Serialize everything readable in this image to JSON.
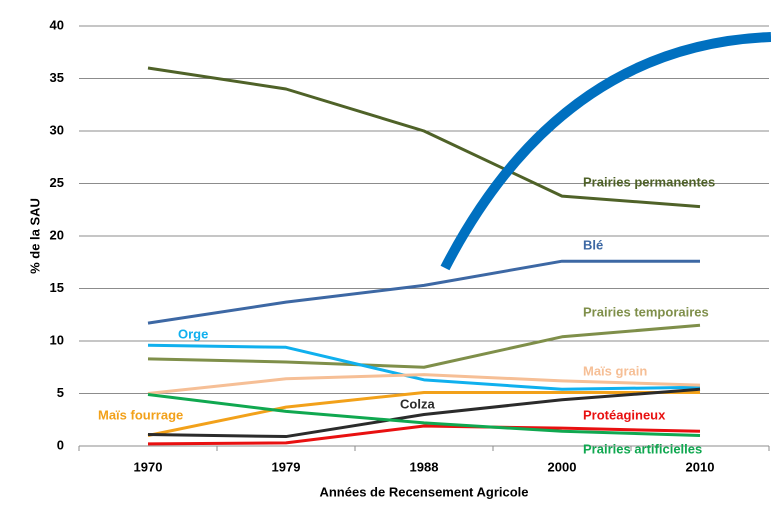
{
  "chart_data": {
    "type": "line",
    "y_label": "% de la SAU",
    "x_label": "Années de Recensement Agricole",
    "categories": [
      "1970",
      "1979",
      "1988",
      "2000",
      "2010"
    ],
    "ylim": [
      0,
      40
    ],
    "yticks": [
      0,
      5,
      10,
      15,
      20,
      25,
      30,
      35,
      40
    ],
    "grid": true,
    "series": [
      {
        "name": "Prairies permanentes",
        "color": "#4f6228",
        "values": [
          36,
          34,
          30,
          23.8,
          22.8
        ]
      },
      {
        "name": "Blé",
        "color": "#3d68a4",
        "values": [
          11.7,
          13.7,
          15.3,
          17.6,
          17.6
        ]
      },
      {
        "name": "Prairies temporaires",
        "color": "#7f8f4a",
        "values": [
          8.3,
          8.0,
          7.5,
          10.4,
          11.5
        ]
      },
      {
        "name": "Orge",
        "color": "#10b0ee",
        "values": [
          9.6,
          9.4,
          6.3,
          5.4,
          5.6
        ]
      },
      {
        "name": "Maïs grain",
        "color": "#f6bf96",
        "values": [
          5.0,
          6.4,
          6.8,
          6.2,
          5.8
        ]
      },
      {
        "name": "Maïs fourrage",
        "color": "#f2a11a",
        "values": [
          1.0,
          3.7,
          5.1,
          5.1,
          5.1
        ]
      },
      {
        "name": "Colza",
        "color": "#2b2b2b",
        "values": [
          1.1,
          0.9,
          3.0,
          4.4,
          5.4
        ]
      },
      {
        "name": "Protéagineux",
        "color": "#e81010",
        "values": [
          0.2,
          0.3,
          1.9,
          1.7,
          1.4
        ]
      },
      {
        "name": "Prairies artificielles",
        "color": "#10a850",
        "values": [
          4.9,
          3.3,
          2.2,
          1.4,
          1.0
        ]
      }
    ]
  }
}
